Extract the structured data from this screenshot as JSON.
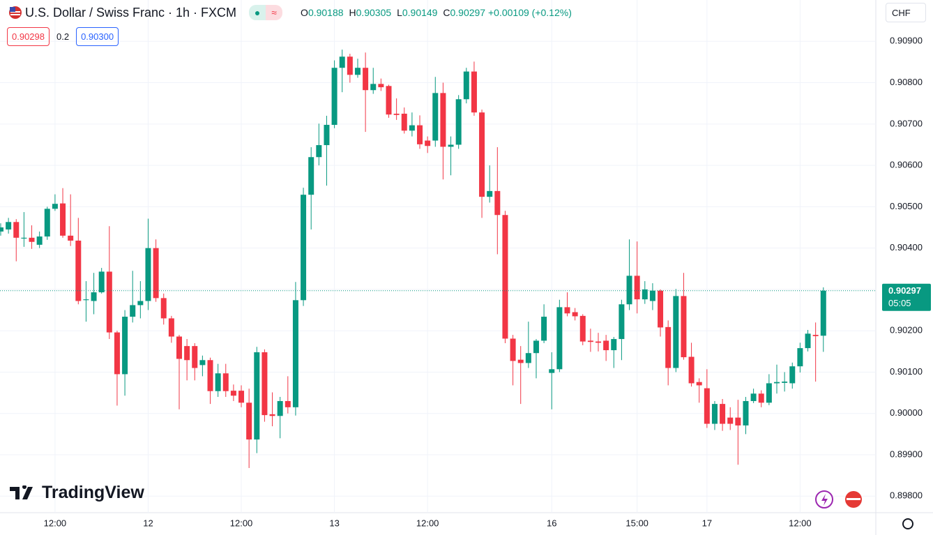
{
  "header": {
    "symbol": "U.S. Dollar / Swiss Franc · 1h · FXCM",
    "toggle": "≈",
    "ohlc": [
      {
        "key": "O",
        "value": "0.90188"
      },
      {
        "key": "H",
        "value": "0.90305"
      },
      {
        "key": "L",
        "value": "0.90149"
      },
      {
        "key": "C",
        "value": "0.90297"
      }
    ],
    "change": "+0.00109 (+0.12%)",
    "bid": "0.90298",
    "spread": "0.2",
    "ask": "0.90300",
    "currency": "CHF",
    "logo": "TradingView"
  },
  "chart_data": {
    "type": "candlestick",
    "categories": [
      null,
      null,
      null,
      null,
      null,
      null,
      null,
      "12:00",
      null,
      null,
      null,
      null,
      null,
      null,
      null,
      null,
      null,
      null,
      null,
      "12",
      null,
      null,
      null,
      null,
      null,
      null,
      null,
      null,
      null,
      null,
      null,
      "12:00",
      null,
      null,
      null,
      null,
      null,
      null,
      null,
      null,
      null,
      null,
      null,
      "13",
      null,
      null,
      null,
      null,
      null,
      null,
      null,
      null,
      null,
      null,
      null,
      "12:00",
      null,
      null,
      null,
      null,
      null,
      null,
      null,
      null,
      null,
      null,
      null,
      null,
      null,
      null,
      null,
      "16",
      null,
      null,
      null,
      null,
      null,
      null,
      null,
      null,
      null,
      null,
      "15:00",
      null,
      null,
      null,
      null,
      null,
      null,
      null,
      null,
      "17",
      null,
      null,
      null,
      null,
      null,
      null,
      null,
      null,
      null,
      null,
      null,
      "12:00",
      null,
      null,
      null
    ],
    "open": [
      0.9044,
      0.90445,
      0.90463,
      0.90423,
      0.90425,
      0.90408,
      0.90428,
      0.90495,
      0.90508,
      0.9043,
      0.90418,
      0.90274,
      0.90272,
      0.90293,
      0.90343,
      0.90196,
      0.90095,
      0.90234,
      0.90262,
      0.90272,
      0.904,
      0.90279,
      0.9023,
      0.90186,
      0.90163,
      0.90163,
      0.90117,
      0.90129,
      0.90054,
      0.90097,
      0.90055,
      0.90055,
      0.90026,
      0.89937,
      0.90148,
      0.89998,
      0.89994,
      0.9003,
      0.90015,
      0.90274,
      0.90529,
      0.9062,
      0.90649,
      0.90698,
      0.90836,
      0.90863,
      0.90819,
      0.90836,
      0.90782,
      0.90797,
      0.90792,
      0.90725,
      0.90725,
      0.90684,
      0.90697,
      0.9066,
      0.9066,
      0.90775,
      0.90645,
      0.9065,
      0.9076,
      0.90827,
      0.90728,
      0.90524,
      0.90538,
      0.9048,
      0.90181,
      0.9013,
      0.90122,
      0.90146,
      0.90176,
      0.90098,
      0.90107,
      0.90257,
      0.90245,
      0.90236,
      0.90176,
      0.90174,
      0.90176,
      0.90153,
      0.9018,
      0.90264,
      0.90333,
      0.90276,
      0.90272,
      0.90297,
      0.90209,
      0.9011,
      0.90284,
      0.90137,
      0.90076,
      0.90061,
      0.89975,
      0.90023,
      0.8999,
      0.8999,
      0.89971,
      0.9003,
      0.90048,
      0.90026,
      0.90073,
      0.90074,
      0.90073,
      0.90114,
      0.90158,
      0.9019,
      0.90188
    ],
    "high": [
      0.9046,
      0.90473,
      0.9047,
      0.90487,
      0.90455,
      0.9044,
      0.905,
      0.9053,
      0.90545,
      0.9053,
      0.90473,
      0.9032,
      0.9034,
      0.90352,
      0.90453,
      0.902,
      0.9025,
      0.90345,
      0.9032,
      0.90471,
      0.90421,
      0.9029,
      0.90236,
      0.9019,
      0.9018,
      0.9017,
      0.9014,
      0.90135,
      0.9012,
      0.9012,
      0.9007,
      0.90068,
      0.9006,
      0.90161,
      0.90155,
      0.90051,
      0.9004,
      0.9009,
      0.90318,
      0.90546,
      0.90644,
      0.90701,
      0.9072,
      0.90854,
      0.9088,
      0.9087,
      0.90858,
      0.90873,
      0.90836,
      0.9081,
      0.90795,
      0.90762,
      0.9074,
      0.90728,
      0.90721,
      0.9067,
      0.90814,
      0.908,
      0.9067,
      0.9077,
      0.90836,
      0.90851,
      0.90735,
      0.906,
      0.90644,
      0.9049,
      0.9019,
      0.90163,
      0.90222,
      0.9018,
      0.90264,
      0.90148,
      0.90275,
      0.90293,
      0.90255,
      0.9024,
      0.90205,
      0.90195,
      0.9019,
      0.90185,
      0.90275,
      0.90421,
      0.90416,
      0.9032,
      0.90315,
      0.903,
      0.90225,
      0.90301,
      0.9034,
      0.90171,
      0.90085,
      0.90107,
      0.9003,
      0.90035,
      0.90015,
      0.90033,
      0.9004,
      0.9006,
      0.90056,
      0.90095,
      0.90118,
      0.901,
      0.90123,
      0.90171,
      0.90202,
      0.9022,
      0.90305
    ],
    "low": [
      0.9043,
      0.90435,
      0.90368,
      0.90403,
      0.90398,
      0.904,
      0.9042,
      0.9049,
      0.90425,
      0.90405,
      0.90264,
      0.90222,
      0.9024,
      0.9029,
      0.9018,
      0.90019,
      0.90043,
      0.9022,
      0.9023,
      0.9025,
      0.9027,
      0.90215,
      0.90171,
      0.9001,
      0.9008,
      0.9008,
      0.9009,
      0.90023,
      0.9004,
      0.9004,
      0.9003,
      0.90015,
      0.89868,
      0.89904,
      0.8998,
      0.89969,
      0.8994,
      0.9,
      0.89995,
      0.9026,
      0.90445,
      0.906,
      0.90551,
      0.9069,
      0.90777,
      0.908,
      0.90812,
      0.90681,
      0.90773,
      0.9078,
      0.90715,
      0.9071,
      0.90677,
      0.9067,
      0.9064,
      0.9063,
      0.90645,
      0.90566,
      0.90576,
      0.9064,
      0.9075,
      0.9072,
      0.90473,
      0.9051,
      0.90385,
      0.9017,
      0.90068,
      0.90023,
      0.9011,
      0.90085,
      0.9017,
      0.9001,
      0.901,
      0.90235,
      0.90225,
      0.90165,
      0.90149,
      0.9015,
      0.90127,
      0.9011,
      0.90129,
      0.9025,
      0.90242,
      0.90265,
      0.9025,
      0.90186,
      0.90068,
      0.901,
      0.9013,
      0.90065,
      0.90026,
      0.89965,
      0.8996,
      0.89958,
      0.8996,
      0.89876,
      0.8995,
      0.90025,
      0.90015,
      0.9002,
      0.90048,
      0.90053,
      0.9006,
      0.90099,
      0.9015,
      0.90077,
      0.90149
    ],
    "close": [
      0.9045,
      0.90463,
      0.90425,
      0.90425,
      0.90415,
      0.90428,
      0.90495,
      0.90507,
      0.9043,
      0.90418,
      0.90272,
      0.90276,
      0.90293,
      0.90343,
      0.90196,
      0.90095,
      0.90234,
      0.90262,
      0.90272,
      0.904,
      0.90279,
      0.9023,
      0.90186,
      0.90132,
      0.90129,
      0.9011,
      0.90129,
      0.90054,
      0.90097,
      0.90054,
      0.90043,
      0.90026,
      0.89937,
      0.90148,
      0.89996,
      0.89994,
      0.9003,
      0.90015,
      0.90274,
      0.90529,
      0.9062,
      0.90649,
      0.90698,
      0.90836,
      0.90863,
      0.90819,
      0.90836,
      0.90782,
      0.90797,
      0.90789,
      0.90723,
      0.90722,
      0.90684,
      0.90697,
      0.90651,
      0.90647,
      0.90775,
      0.90645,
      0.9065,
      0.9076,
      0.90827,
      0.90728,
      0.90524,
      0.90538,
      0.9048,
      0.90181,
      0.90127,
      0.90122,
      0.90146,
      0.90176,
      0.90234,
      0.90107,
      0.90257,
      0.90242,
      0.90235,
      0.90174,
      0.90173,
      0.90171,
      0.90153,
      0.9018,
      0.90264,
      0.90333,
      0.90276,
      0.903,
      0.90297,
      0.90208,
      0.9011,
      0.90284,
      0.90136,
      0.90073,
      0.90068,
      0.89975,
      0.90023,
      0.89975,
      0.89975,
      0.89971,
      0.9003,
      0.90048,
      0.90026,
      0.90073,
      0.90076,
      0.90077,
      0.90114,
      0.90158,
      0.90193,
      0.90187,
      0.90297
    ],
    "up_color": "#089981",
    "down_color": "#f23645",
    "ylim": [
      0.8976,
      0.91
    ],
    "yticks": [
      {
        "value": 0.898,
        "label": "0.89800"
      },
      {
        "value": 0.899,
        "label": "0.89900"
      },
      {
        "value": 0.9,
        "label": "0.90000"
      },
      {
        "value": 0.901,
        "label": "0.90100"
      },
      {
        "value": 0.902,
        "label": "0.90200"
      },
      {
        "value": 0.903,
        "label": "0.90300"
      },
      {
        "value": 0.904,
        "label": "0.90400"
      },
      {
        "value": 0.905,
        "label": "0.90500"
      },
      {
        "value": 0.906,
        "label": "0.90600"
      },
      {
        "value": 0.907,
        "label": "0.90700"
      },
      {
        "value": 0.908,
        "label": "0.90800"
      },
      {
        "value": 0.909,
        "label": "0.90900"
      }
    ],
    "grid": true,
    "countdown": "05:05"
  }
}
